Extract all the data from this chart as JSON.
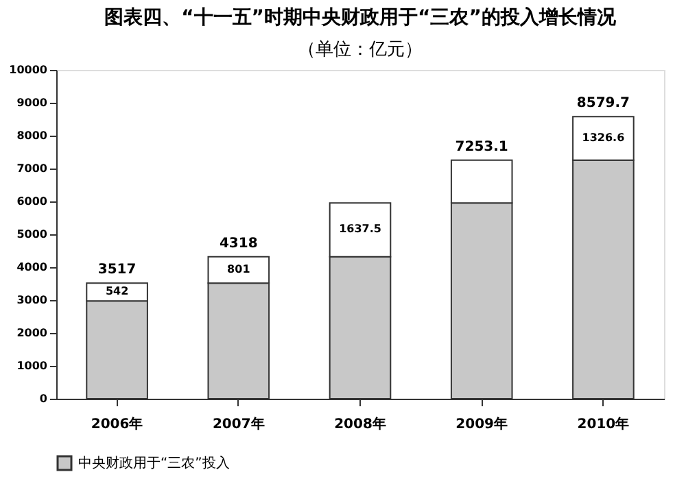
{
  "chart_data": {
    "type": "bar",
    "title": "图表四、“十一五”时期中央财政用于“三农”的投入增长情况",
    "subtitle": "（单位：亿元）",
    "categories": [
      "2006年",
      "2007年",
      "2008年",
      "2009年",
      "2010年"
    ],
    "stacked": true,
    "series": [
      {
        "name": "中央财政用于“三农”投入",
        "color": "#c8c8c8",
        "values": [
          2975,
          3517,
          4318,
          5955.5,
          7253.1
        ]
      },
      {
        "color": "#ffffff",
        "values": [
          542,
          801,
          1637.5,
          1297.6,
          1326.6
        ],
        "value_labels": [
          "542",
          "801",
          "1637.5",
          null,
          "1326.6"
        ]
      }
    ],
    "totals": [
      "3517",
      "4318",
      null,
      "7253.1",
      "8579.7"
    ],
    "ylim": [
      0,
      10000
    ],
    "yticks": [
      0,
      1000,
      2000,
      3000,
      4000,
      5000,
      6000,
      7000,
      8000,
      9000,
      10000
    ],
    "grid": false,
    "legend": "bottom"
  }
}
